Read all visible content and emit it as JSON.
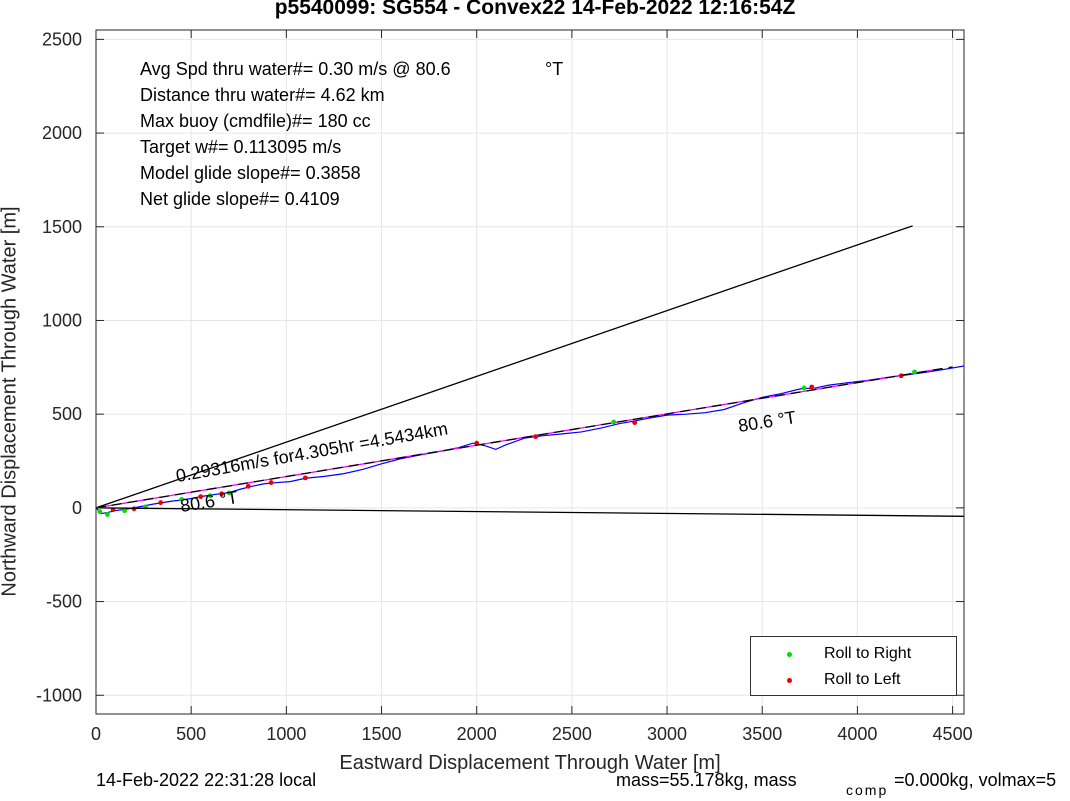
{
  "title": "p5540099: SG554 - Convex22 14-Feb-2022 12:16:54Z",
  "info_lines": [
    "Avg Spd thru water#=  0.30 m/s @  80.6",
    "Distance thru water#=  4.62 km",
    "Max buoy (cmdfile)#= 180 cc",
    "Target w#= 0.113095 m/s",
    "Model glide slope#= 0.3858",
    "Net glide slope#= 0.4109"
  ],
  "info_unit": "°T",
  "annotations": {
    "speed": "0.29316m/s for4.305hr =4.5434km",
    "heading_near": "80.6 °T",
    "heading_far": "80.6  °T"
  },
  "footer": {
    "local_time": "14-Feb-2022 22:31:28 local",
    "mass": "mass=55.178kg, mass",
    "comp_sub": "comp",
    "comp_tail": "=0.000kg, volmax=5"
  },
  "colors": {
    "track": "#0000ff",
    "mean_track": "#ff00ff",
    "roll_right": "#00dd00",
    "roll_left": "#ee0000",
    "reference": "#000000"
  },
  "chart_data": {
    "type": "line",
    "title": "p5540099: SG554 - Convex22 14-Feb-2022 12:16:54Z",
    "xlabel": "Eastward Displacement Through Water [m]",
    "ylabel": "Northward Displacement Through Water [m]",
    "xlim": [
      0,
      4560
    ],
    "ylim": [
      -1100,
      2550
    ],
    "xticks": [
      0,
      500,
      1000,
      1500,
      2000,
      2500,
      3000,
      3500,
      4000,
      4500
    ],
    "yticks": [
      -1000,
      -500,
      0,
      500,
      1000,
      1500,
      2000,
      2500
    ],
    "grid": true,
    "legend_position": "bottom-right",
    "legend": [
      "Roll to Right",
      "Roll to Left"
    ],
    "series": [
      {
        "name": "Track",
        "color": "#0000ff",
        "x": [
          0,
          30,
          60,
          100,
          150,
          200,
          250,
          300,
          350,
          400,
          450,
          500,
          550,
          600,
          650,
          700,
          760,
          820,
          880,
          950,
          1020,
          1100,
          1200,
          1300,
          1400,
          1500,
          1600,
          1700,
          1800,
          1900,
          1980,
          2050,
          2100,
          2150,
          2250,
          2350,
          2450,
          2550,
          2650,
          2750,
          2820,
          2900,
          3000,
          3100,
          3200,
          3300,
          3400,
          3500,
          3600,
          3700,
          3780,
          3850,
          3950,
          4050,
          4150,
          4250,
          4350,
          4450,
          4560
        ],
        "y": [
          0,
          -30,
          -25,
          -15,
          -8,
          0,
          10,
          20,
          28,
          36,
          42,
          50,
          60,
          68,
          75,
          82,
          100,
          115,
          128,
          135,
          140,
          158,
          168,
          182,
          205,
          235,
          262,
          282,
          300,
          320,
          345,
          330,
          312,
          335,
          372,
          385,
          395,
          405,
          425,
          450,
          462,
          478,
          495,
          500,
          508,
          525,
          560,
          590,
          610,
          635,
          640,
          655,
          668,
          680,
          695,
          708,
          722,
          738,
          757
        ]
      },
      {
        "name": "Mean track",
        "color": "#ff00ff",
        "x": [
          0,
          4420
        ],
        "y": [
          0,
          739
        ]
      },
      {
        "name": "Roll to Right",
        "color": "#00dd00",
        "marker": "dot",
        "x": [
          20,
          60,
          150,
          260,
          450,
          600,
          700,
          2720,
          3720,
          4300
        ],
        "y": [
          -20,
          -35,
          -15,
          5,
          45,
          65,
          80,
          458,
          640,
          725
        ]
      },
      {
        "name": "Roll to Left",
        "color": "#ee0000",
        "marker": "dot",
        "x": [
          90,
          200,
          340,
          550,
          660,
          800,
          920,
          1100,
          2000,
          2310,
          2830,
          3760,
          4230
        ],
        "y": [
          -10,
          -5,
          28,
          60,
          75,
          115,
          135,
          160,
          345,
          380,
          455,
          645,
          705
        ]
      },
      {
        "name": "Reference glide",
        "color": "#000000",
        "x": [
          0,
          4290
        ],
        "y": [
          0,
          1505
        ]
      },
      {
        "name": "Reference heading",
        "color": "#000000",
        "x": [
          0,
          4560
        ],
        "y": [
          0,
          -45
        ]
      },
      {
        "name": "Reference current",
        "color": "#000000",
        "x": [
          0,
          4500
        ],
        "y": [
          0,
          752
        ]
      }
    ]
  }
}
